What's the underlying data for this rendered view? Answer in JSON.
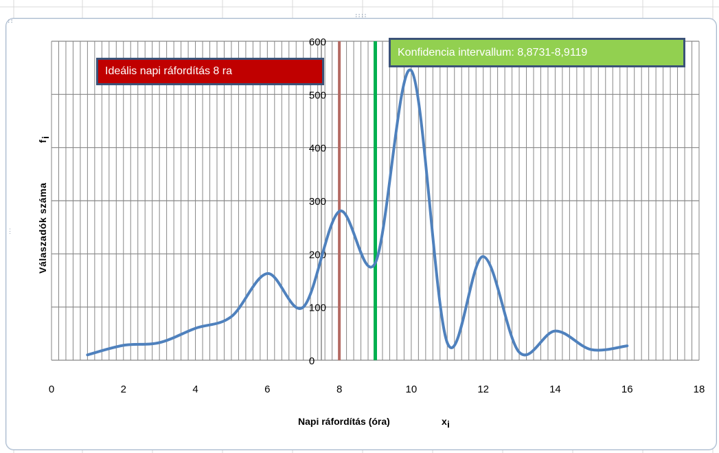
{
  "chart_data": {
    "type": "line",
    "xlabel": "Napi ráfordítás (óra)",
    "xlabel_symbol": "x",
    "xlabel_subscript": "i",
    "ylabel": "Válaszadók száma",
    "ylabel_symbol": "f",
    "ylabel_subscript": "i",
    "xlim": [
      0,
      18
    ],
    "ylim": [
      0,
      600
    ],
    "x_ticks": [
      0,
      2,
      4,
      6,
      8,
      10,
      12,
      14,
      16,
      18
    ],
    "y_ticks": [
      0,
      100,
      200,
      300,
      400,
      500,
      600
    ],
    "y_axis_at_x": 7.5,
    "grid": "on",
    "series": [
      {
        "color": "#4f81bd",
        "smooth": true,
        "x": [
          1,
          2,
          3,
          4,
          5,
          6,
          7,
          8,
          9,
          10,
          11,
          12,
          13,
          14,
          15,
          16
        ],
        "y": [
          10,
          28,
          33,
          60,
          82,
          163,
          100,
          280,
          183,
          545,
          33,
          195,
          15,
          55,
          20,
          27
        ]
      }
    ],
    "vertical_lines": [
      {
        "x": 8,
        "color": "#b46a63"
      },
      {
        "x": 9,
        "color": "#00b050"
      }
    ],
    "annotations": [
      {
        "id": "ideal",
        "text": "Ideális napi ráfordítás 8 ra",
        "background": "#c00000",
        "border": "#3b5278",
        "text_color": "#ffffff"
      },
      {
        "id": "ci",
        "text": "Konfidencia intervallum: 8,8731-8,9119",
        "background": "#92d050",
        "border": "#3b5278",
        "text_color": "#ffffff"
      }
    ]
  },
  "colors": {
    "gridline": "#868686",
    "frame_border": "#a5b6cb",
    "sheet_gridline": "#d9d9d9"
  }
}
